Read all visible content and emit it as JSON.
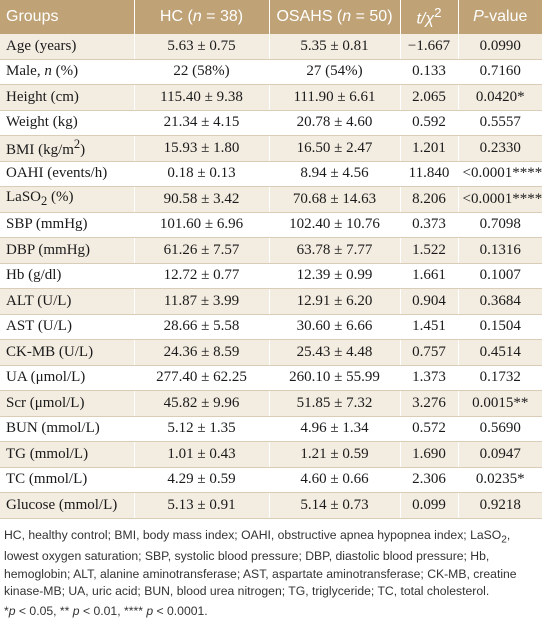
{
  "table": {
    "headers": {
      "groups": "Groups",
      "hc": "HC (",
      "hc_n": "n",
      "hc_count": " = 38)",
      "osahs": "OSAHS (",
      "osahs_n": "n",
      "osahs_count": " = 50)",
      "t_chi": "t/χ",
      "t_chi_sup": "2",
      "p": "P",
      "p_rest": "-value"
    },
    "rows": [
      {
        "label": "Age (years)",
        "hc": "5.63 ± 0.75",
        "osahs": "5.35 ± 0.81",
        "t": "−1.667",
        "p": "0.0990"
      },
      {
        "label": "Male, ",
        "label_it": "n",
        "label_post": " (%)",
        "hc": "22 (58%)",
        "osahs": "27 (54%)",
        "t": "0.133",
        "p": "0.7160"
      },
      {
        "label": "Height (cm)",
        "hc": "115.40 ± 9.38",
        "osahs": "111.90 ± 6.61",
        "t": "2.065",
        "p": "0.0420*"
      },
      {
        "label": "Weight (kg)",
        "hc": "21.34 ± 4.15",
        "osahs": "20.78 ± 4.60",
        "t": "0.592",
        "p": "0.5557"
      },
      {
        "label": "BMI (kg/m",
        "label_sup": "2",
        "label_post": ")",
        "hc": "15.93 ± 1.80",
        "osahs": "16.50 ± 2.47",
        "t": "1.201",
        "p": "0.2330"
      },
      {
        "label": "OAHI (events/h)",
        "hc": "0.18 ± 0.13",
        "osahs": "8.94 ± 4.56",
        "t": "11.840",
        "p": "<0.0001****"
      },
      {
        "label": "LaSO",
        "label_sub": "2",
        "label_post": " (%)",
        "hc": "90.58 ± 3.42",
        "osahs": "70.68 ± 14.63",
        "t": "8.206",
        "p": "<0.0001****"
      },
      {
        "label": "SBP (mmHg)",
        "hc": "101.60 ± 6.96",
        "osahs": "102.40 ± 10.76",
        "t": "0.373",
        "p": "0.7098"
      },
      {
        "label": "DBP (mmHg)",
        "hc": "61.26 ± 7.57",
        "osahs": "63.78 ± 7.77",
        "t": "1.522",
        "p": "0.1316"
      },
      {
        "label": "Hb (g/dl)",
        "hc": "12.72 ± 0.77",
        "osahs": "12.39 ± 0.99",
        "t": "1.661",
        "p": "0.1007"
      },
      {
        "label": "ALT (U/L)",
        "hc": "11.87 ± 3.99",
        "osahs": "12.91 ± 6.20",
        "t": "0.904",
        "p": "0.3684"
      },
      {
        "label": "AST (U/L)",
        "hc": "28.66 ± 5.58",
        "osahs": "30.60 ± 6.66",
        "t": "1.451",
        "p": "0.1504"
      },
      {
        "label": "CK-MB (U/L)",
        "hc": "24.36 ± 8.59",
        "osahs": "25.43 ± 4.48",
        "t": "0.757",
        "p": "0.4514"
      },
      {
        "label": "UA (μmol/L)",
        "hc": "277.40 ± 62.25",
        "osahs": "260.10 ± 55.99",
        "t": "1.373",
        "p": "0.1732"
      },
      {
        "label": "Scr (μmol/L)",
        "hc": "45.82 ± 9.96",
        "osahs": "51.85 ± 7.32",
        "t": "3.276",
        "p": "0.0015**"
      },
      {
        "label": "BUN (mmol/L)",
        "hc": "5.12 ± 1.35",
        "osahs": "4.96 ± 1.34",
        "t": "0.572",
        "p": "0.5690"
      },
      {
        "label": "TG (mmol/L)",
        "hc": "1.01 ± 0.43",
        "osahs": "1.21 ± 0.59",
        "t": "1.690",
        "p": "0.0947"
      },
      {
        "label": "TC (mmol/L)",
        "hc": "4.29 ± 0.59",
        "osahs": "4.60 ± 0.66",
        "t": "2.306",
        "p": "0.0235*"
      },
      {
        "label": "Glucose (mmol/L)",
        "hc": "5.13 ± 0.91",
        "osahs": "5.14 ± 0.73",
        "t": "0.099",
        "p": "0.9218"
      }
    ]
  },
  "footnote": {
    "abbr_pre": "HC, healthy control; BMI, body mass index; OAHI, obstructive apnea hypopnea index; LaSO",
    "abbr_sub": "2",
    "abbr_post": ", lowest oxygen saturation; SBP, systolic blood pressure; DBP, diastolic blood pressure; Hb, hemoglobin; ALT, alanine aminotransferase; AST, aspartate aminotransferase; CK-MB, creatine kinase-MB; UA, uric acid; BUN, blood urea nitrogen; TG, triglyceride; TC, total cholesterol.",
    "sig_star1": "*",
    "sig_p1": "p",
    "sig_text1": " < 0.05, ** ",
    "sig_p2": "p",
    "sig_text2": " < 0.01, **** ",
    "sig_p3": "p",
    "sig_text3": " < 0.0001."
  }
}
